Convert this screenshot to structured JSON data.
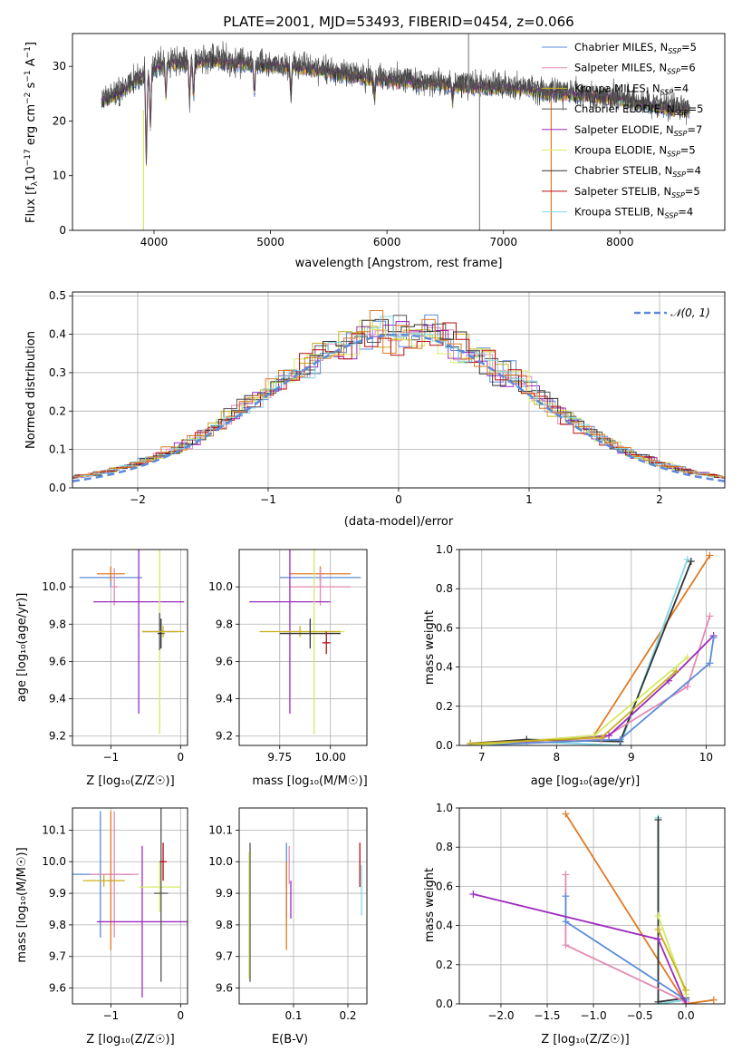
{
  "colors": {
    "chabrier_miles": "#5b8bd8",
    "salpeter_miles": "#e48ab4",
    "kroupa_miles": "#c8b01e",
    "chabrier_elodie": "#555555",
    "salpeter_elodie": "#9d2bbf",
    "kroupa_elodie": "#d5ea64",
    "chabrier_stelib": "#333333",
    "salpeter_stelib": "#b80d12",
    "kroupa_stelib": "#7fd8e4",
    "orange": "#e07a24",
    "gaussian": "#5b8bd8"
  },
  "legend_entries": [
    {
      "label": "Chabrier MILES, N",
      "sub": "SSP",
      "tail": "=5",
      "color_key": "chabrier_miles"
    },
    {
      "label": "Salpeter MILES, N",
      "sub": "SSP",
      "tail": "=6",
      "color_key": "salpeter_miles"
    },
    {
      "label": "Kroupa MILES, N",
      "sub": "SSP",
      "tail": "=4",
      "color_key": "kroupa_miles"
    },
    {
      "label": "Chabrier ELODIE, N",
      "sub": "SSP",
      "tail": "=5",
      "color_key": "chabrier_elodie"
    },
    {
      "label": "Salpeter ELODIE, N",
      "sub": "SSP",
      "tail": "=7",
      "color_key": "salpeter_elodie"
    },
    {
      "label": "Kroupa ELODIE, N",
      "sub": "SSP",
      "tail": "=5",
      "color_key": "kroupa_elodie"
    },
    {
      "label": "Chabrier STELIB, N",
      "sub": "SSP",
      "tail": "=4",
      "color_key": "chabrier_stelib"
    },
    {
      "label": "Salpeter STELIB, N",
      "sub": "SSP",
      "tail": "=5",
      "color_key": "salpeter_stelib"
    },
    {
      "label": "Kroupa STELIB, N",
      "sub": "SSP",
      "tail": "=4",
      "color_key": "kroupa_stelib"
    }
  ],
  "chart_data": [
    {
      "type": "line",
      "title": "PLATE=2001, MJD=53493, FIBERID=0454, z=0.066",
      "xlabel": "wavelength [Angstrom, rest frame]",
      "ylabel_main": "Flux [f",
      "ylabel_sub": "λ",
      "ylabel_rest": "10",
      "ylabel_exp": "−17",
      "ylabel_units": " erg cm",
      "ylabel_exp2": "−2",
      "ylabel_units2": " s",
      "ylabel_exp3": "−1",
      "ylabel_units3": " A",
      "ylabel_exp4": "−1",
      "ylabel_end": "]",
      "xlim": [
        3300,
        8900
      ],
      "ylim": [
        0,
        36
      ],
      "xticks": [
        4000,
        5000,
        6000,
        7000,
        8000
      ],
      "yticks": [
        0,
        10,
        20,
        30
      ],
      "spectrum_anchors": {
        "x": [
          3550,
          3700,
          3900,
          4100,
          4300,
          4500,
          4700,
          5000,
          5300,
          5600,
          5900,
          6200,
          6500,
          6800,
          7100,
          7400,
          7700,
          8000,
          8300,
          8600
        ],
        "y": [
          23.5,
          25,
          28,
          30.5,
          30.5,
          31,
          30.5,
          30,
          29.5,
          28.5,
          27.5,
          27,
          26.5,
          26,
          26,
          25,
          24.5,
          23.8,
          22.5,
          21.8
        ]
      },
      "absorption_dips": [
        {
          "x": 3934,
          "depth": 16
        },
        {
          "x": 3969,
          "depth": 10
        },
        {
          "x": 4102,
          "depth": 6
        },
        {
          "x": 4305,
          "depth": 7
        },
        {
          "x": 4340,
          "depth": 6
        },
        {
          "x": 4861,
          "depth": 5
        },
        {
          "x": 5175,
          "depth": 5
        },
        {
          "x": 5893,
          "depth": 3
        },
        {
          "x": 6563,
          "depth": 3
        }
      ],
      "artifact_spikes": [
        {
          "x": 3910,
          "bottom": 0,
          "top": 22
        },
        {
          "x": 6795,
          "bottom": 0,
          "top": 26
        },
        {
          "x": 7410,
          "bottom": 0,
          "top": 24
        },
        {
          "x": 6700,
          "bottom": 25,
          "top": 36
        }
      ]
    },
    {
      "type": "bar",
      "xlabel": "(data-model)/error",
      "ylabel": "Normed distribution",
      "xlim": [
        -2.5,
        2.5
      ],
      "ylim": [
        0,
        0.51
      ],
      "xticks": [
        -2,
        -1,
        0,
        1,
        2
      ],
      "xtick_labels": [
        "−2",
        "−1",
        "0",
        "1",
        "2"
      ],
      "yticks": [
        0.0,
        0.1,
        0.2,
        0.3,
        0.4,
        0.5
      ],
      "ytick_labels": [
        "0.0",
        "0.1",
        "0.2",
        "0.3",
        "0.4",
        "0.5"
      ],
      "legend_label": "𝒩(0, 1)",
      "bin_width": 0.1
    },
    {
      "type": "scatter",
      "xlabel": "Z [log₁₀(Z/Z☉)]",
      "ylabel": "age  [log₁₀(age/yr)]",
      "xlim": [
        -1.55,
        0.1
      ],
      "ylim": [
        9.15,
        10.2
      ],
      "xticks": [
        -1,
        0
      ],
      "xtick_labels": [
        "−1",
        "0"
      ],
      "yticks": [
        9.2,
        9.4,
        9.6,
        9.8,
        10.0
      ],
      "ytick_labels": [
        "9.2",
        "9.4",
        "9.6",
        "9.8",
        "10.0"
      ],
      "points": [
        {
          "c": "chabrier_miles",
          "x": -1.0,
          "y": 10.05,
          "xe": 0.45,
          "ye": 0.05
        },
        {
          "c": "orange",
          "x": -1.0,
          "y": 10.07,
          "xe": 0.2,
          "ye": 0.04
        },
        {
          "c": "salpeter_miles",
          "x": -0.95,
          "y": 10.0,
          "xe": 0.05,
          "ye": 0.1
        },
        {
          "c": "salpeter_elodie",
          "x": -0.6,
          "y": 9.92,
          "xe": 0.65,
          "ye": 0.6
        },
        {
          "c": "kroupa_elodie",
          "x": -0.3,
          "y": 9.76,
          "xe": 0.0,
          "ye": 0.55
        },
        {
          "c": "chabrier_elodie",
          "x": -0.3,
          "y": 9.76,
          "xe": 0.25,
          "ye": 0.1
        },
        {
          "c": "chabrier_stelib",
          "x": -0.28,
          "y": 9.75,
          "xe": 0.05,
          "ye": 0.08
        },
        {
          "c": "kroupa_miles",
          "x": -0.25,
          "y": 9.76,
          "xe": 0.3,
          "ye": 0.03
        }
      ]
    },
    {
      "type": "scatter",
      "xlabel": "mass [log₁₀(M/M☉)]",
      "xlim": [
        9.55,
        10.18
      ],
      "ylim": [
        9.15,
        10.2
      ],
      "xticks": [
        9.75,
        10.0
      ],
      "xtick_labels": [
        "9.75",
        "10.00"
      ],
      "yticks": [
        9.2,
        9.4,
        9.6,
        9.8,
        10.0
      ],
      "ytick_labels": [
        "9.2",
        "9.4",
        "9.6",
        "9.8",
        "10.0"
      ],
      "points": [
        {
          "c": "chabrier_miles",
          "x": 9.95,
          "y": 10.05,
          "xe": 0.2,
          "ye": 0.05
        },
        {
          "c": "orange",
          "x": 9.95,
          "y": 10.07,
          "xe": 0.15,
          "ye": 0.04
        },
        {
          "c": "salpeter_miles",
          "x": 9.95,
          "y": 10.0,
          "xe": 0.15,
          "ye": 0.1
        },
        {
          "c": "salpeter_elodie",
          "x": 9.8,
          "y": 9.92,
          "xe": 0.2,
          "ye": 0.6
        },
        {
          "c": "kroupa_elodie",
          "x": 9.92,
          "y": 9.76,
          "xe": 0.15,
          "ye": 0.55
        },
        {
          "c": "kroupa_miles",
          "x": 9.85,
          "y": 9.76,
          "xe": 0.2,
          "ye": 0.03
        },
        {
          "c": "chabrier_stelib",
          "x": 9.9,
          "y": 9.75,
          "xe": 0.15,
          "ye": 0.08
        },
        {
          "c": "salpeter_stelib",
          "x": 9.98,
          "y": 9.7,
          "xe": 0.02,
          "ye": 0.06
        }
      ]
    },
    {
      "type": "line",
      "xlabel": "age  [log₁₀(age/yr)]",
      "ylabel": "mass weight",
      "xlim": [
        6.7,
        10.25
      ],
      "ylim": [
        0,
        1
      ],
      "xticks": [
        7,
        8,
        9,
        10
      ],
      "xtick_labels": [
        "7",
        "8",
        "9",
        "10"
      ],
      "yticks": [
        0,
        0.2,
        0.4,
        0.6,
        0.8,
        1.0
      ],
      "ytick_labels": [
        "0.0",
        "0.2",
        "0.4",
        "0.6",
        "0.8",
        "1.0"
      ],
      "series": [
        {
          "c": "orange",
          "x": [
            6.85,
            8.5,
            10.05
          ],
          "y": [
            0.0,
            0.05,
            0.97
          ]
        },
        {
          "c": "kroupa_stelib",
          "x": [
            6.85,
            7.6,
            8.85,
            9.75
          ],
          "y": [
            0.0,
            0.02,
            0.0,
            0.95
          ]
        },
        {
          "c": "chabrier_stelib",
          "x": [
            6.85,
            7.6,
            8.85,
            9.8
          ],
          "y": [
            0.01,
            0.03,
            0.02,
            0.94
          ]
        },
        {
          "c": "salpeter_miles",
          "x": [
            6.85,
            8.6,
            9.75,
            10.05
          ],
          "y": [
            0.0,
            0.03,
            0.3,
            0.66
          ]
        },
        {
          "c": "salpeter_elodie",
          "x": [
            6.85,
            8.7,
            9.5,
            10.1
          ],
          "y": [
            0.0,
            0.05,
            0.33,
            0.56
          ]
        },
        {
          "c": "chabrier_miles",
          "x": [
            6.85,
            8.85,
            10.05,
            10.1
          ],
          "y": [
            0.0,
            0.03,
            0.42,
            0.55
          ]
        },
        {
          "c": "kroupa_elodie",
          "x": [
            6.85,
            8.5,
            9.75
          ],
          "y": [
            0.0,
            0.05,
            0.45
          ]
        },
        {
          "c": "kroupa_miles",
          "x": [
            6.85,
            8.6,
            9.6
          ],
          "y": [
            0.01,
            0.04,
            0.38
          ]
        }
      ]
    },
    {
      "type": "scatter",
      "xlabel": "Z [log₁₀(Z/Z☉)]",
      "ylabel": "mass [log₁₀(M/M☉)]",
      "xlim": [
        -1.55,
        0.1
      ],
      "ylim": [
        9.55,
        10.17
      ],
      "xticks": [
        -1,
        0
      ],
      "xtick_labels": [
        "−1",
        "0"
      ],
      "yticks": [
        9.6,
        9.7,
        9.8,
        9.9,
        10.0,
        10.1
      ],
      "ytick_labels": [
        "9.6",
        "9.7",
        "9.8",
        "9.9",
        "10.0",
        "10.1"
      ],
      "points": [
        {
          "c": "chabrier_miles",
          "x": -1.15,
          "y": 9.96,
          "xe": 0.45,
          "ye": 0.2
        },
        {
          "c": "salpeter_miles",
          "x": -0.95,
          "y": 9.96,
          "xe": 0.35,
          "ye": 0.2
        },
        {
          "c": "orange",
          "x": -1.0,
          "y": 9.94,
          "xe": 0.05,
          "ye": 0.22
        },
        {
          "c": "kroupa_miles",
          "x": -1.1,
          "y": 9.94,
          "xe": 0.3,
          "ye": 0.02
        },
        {
          "c": "salpeter_elodie",
          "x": -0.55,
          "y": 9.81,
          "xe": 0.65,
          "ye": 0.24
        },
        {
          "c": "kroupa_elodie",
          "x": -0.3,
          "y": 9.92,
          "xe": 0.3,
          "ye": 0.08
        },
        {
          "c": "chabrier_elodie",
          "x": -0.28,
          "y": 9.9,
          "xe": 0.1,
          "ye": 0.28
        },
        {
          "c": "salpeter_stelib",
          "x": -0.25,
          "y": 10.0,
          "xe": 0.05,
          "ye": 0.06
        }
      ]
    },
    {
      "type": "scatter",
      "xlabel": "E(B-V)",
      "xlim": [
        0.0,
        0.235
      ],
      "ylim": [
        9.55,
        10.17
      ],
      "xticks": [
        0.1,
        0.2
      ],
      "xtick_labels": [
        "0.1",
        "0.2"
      ],
      "yticks": [
        9.6,
        9.7,
        9.8,
        9.9,
        10.0,
        10.1
      ],
      "ytick_labels": [
        "9.6",
        "9.7",
        "9.8",
        "9.9",
        "10.0",
        "10.1"
      ],
      "points": [
        {
          "c": "chabrier_elodie",
          "x": 0.02,
          "y": 9.84,
          "xe": 0.0,
          "ye": 0.22
        },
        {
          "c": "kroupa_elodie",
          "x": 0.018,
          "y": 9.83,
          "xe": 0.0,
          "ye": 0.2
        },
        {
          "c": "chabrier_miles",
          "x": 0.087,
          "y": 9.94,
          "xe": 0.0,
          "ye": 0.12
        },
        {
          "c": "orange",
          "x": 0.087,
          "y": 9.86,
          "xe": 0.0,
          "ye": 0.14
        },
        {
          "c": "salpeter_miles",
          "x": 0.092,
          "y": 9.99,
          "xe": 0.0,
          "ye": 0.06
        },
        {
          "c": "salpeter_elodie",
          "x": 0.095,
          "y": 9.88,
          "xe": 0.0,
          "ye": 0.06
        },
        {
          "c": "salpeter_stelib",
          "x": 0.222,
          "y": 9.99,
          "xe": 0.0,
          "ye": 0.07
        },
        {
          "c": "kroupa_stelib",
          "x": 0.225,
          "y": 9.91,
          "xe": 0.0,
          "ye": 0.08
        }
      ]
    },
    {
      "type": "line",
      "xlabel": "Z [log₁₀(Z/Z☉)]",
      "ylabel": "mass weight",
      "xlim": [
        -2.45,
        0.42
      ],
      "ylim": [
        0,
        1
      ],
      "xticks": [
        -2.0,
        -1.5,
        -1.0,
        -0.5,
        0.0
      ],
      "xtick_labels": [
        "−2.0",
        "−1.5",
        "−1.0",
        "−0.5",
        "0.0"
      ],
      "yticks": [
        0,
        0.2,
        0.4,
        0.6,
        0.8,
        1.0
      ],
      "ytick_labels": [
        "0.0",
        "0.2",
        "0.4",
        "0.6",
        "0.8",
        "1.0"
      ],
      "series": [
        {
          "c": "orange",
          "x": [
            -1.3,
            0.0,
            0.3
          ],
          "y": [
            0.97,
            0.0,
            0.02
          ]
        },
        {
          "c": "kroupa_stelib",
          "x": [
            -0.3,
            -0.3,
            0.0
          ],
          "y": [
            0.95,
            0.0,
            0.02
          ]
        },
        {
          "c": "chabrier_stelib",
          "x": [
            -0.3,
            -0.3,
            0.0
          ],
          "y": [
            0.94,
            0.01,
            0.03
          ]
        },
        {
          "c": "salpeter_miles",
          "x": [
            -1.3,
            -1.3,
            0.0
          ],
          "y": [
            0.66,
            0.3,
            0.01
          ]
        },
        {
          "c": "chabrier_miles",
          "x": [
            -1.3,
            -1.3,
            0.0
          ],
          "y": [
            0.55,
            0.42,
            0.02
          ]
        },
        {
          "c": "salpeter_elodie",
          "x": [
            -2.3,
            -0.3,
            0.0
          ],
          "y": [
            0.56,
            0.33,
            0.0
          ]
        },
        {
          "c": "kroupa_elodie",
          "x": [
            -0.3,
            0.0
          ],
          "y": [
            0.45,
            0.05
          ]
        },
        {
          "c": "kroupa_miles",
          "x": [
            -0.3,
            0.0
          ],
          "y": [
            0.38,
            0.07
          ]
        }
      ]
    }
  ]
}
